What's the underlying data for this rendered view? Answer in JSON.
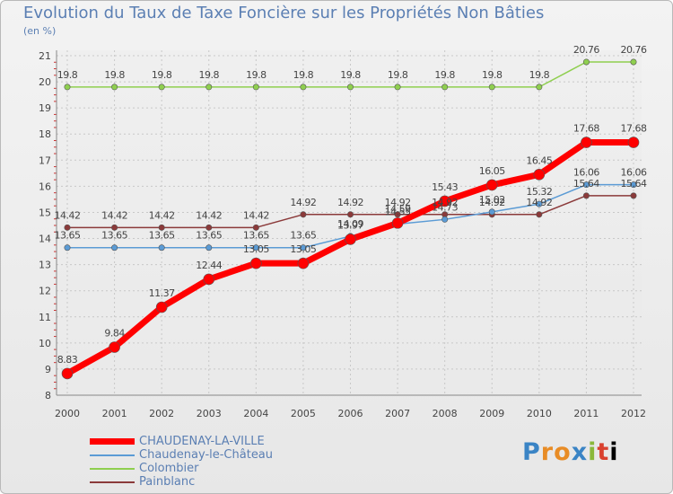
{
  "chart_data": {
    "type": "line",
    "title": "Evolution du Taux de Taxe Foncière sur les Propriétés Non Bâties",
    "ylabel": "(en %)",
    "xlabel": "",
    "ylim": [
      8,
      21
    ],
    "yticks": [
      "8",
      "9",
      "10",
      "11",
      "12",
      "13",
      "14",
      "15",
      "16",
      "17",
      "18",
      "19",
      "20",
      "21"
    ],
    "x": [
      "2000",
      "2001",
      "2002",
      "2003",
      "2004",
      "2005",
      "2006",
      "2007",
      "2008",
      "2009",
      "2010",
      "2011",
      "2012"
    ],
    "series": [
      {
        "name": "CHAUDENAY-LA-VILLE",
        "color": "#ff0000",
        "values": [
          8.83,
          9.84,
          11.37,
          12.44,
          13.05,
          13.05,
          13.97,
          14.59,
          15.43,
          16.05,
          16.45,
          17.68,
          17.68
        ],
        "labels": [
          "8.83",
          "9.84",
          "11.37",
          "12.44",
          "13.05",
          "13.05",
          "13.97",
          "14.59",
          "15.43",
          "16.05",
          "16.45",
          "17.68",
          "17.68"
        ]
      },
      {
        "name": "Chaudenay-le-Château",
        "color": "#5b9bd5",
        "values": [
          13.65,
          13.65,
          13.65,
          13.65,
          13.65,
          13.65,
          14.09,
          14.55,
          14.73,
          15.02,
          15.32,
          16.06,
          16.06
        ],
        "labels": [
          "13.65",
          "13.65",
          "13.65",
          "13.65",
          "13.65",
          "13.65",
          "14.09",
          "14.55",
          "14.73",
          "15.02",
          "15.32",
          "16.06",
          "16.06"
        ]
      },
      {
        "name": "Colombier",
        "color": "#8fcf4f",
        "values": [
          19.8,
          19.8,
          19.8,
          19.8,
          19.8,
          19.8,
          19.8,
          19.8,
          19.8,
          19.8,
          19.8,
          20.76,
          20.76
        ],
        "labels": [
          "19.8",
          "19.8",
          "19.8",
          "19.8",
          "19.8",
          "19.8",
          "19.8",
          "19.8",
          "19.8",
          "19.8",
          "19.8",
          "20.76",
          "20.76"
        ]
      },
      {
        "name": "Painblanc",
        "color": "#8b3a3a",
        "values": [
          14.42,
          14.42,
          14.42,
          14.42,
          14.42,
          14.92,
          14.92,
          14.92,
          14.92,
          14.92,
          14.92,
          15.64,
          15.64
        ],
        "labels": [
          "14.42",
          "14.42",
          "14.42",
          "14.42",
          "14.42",
          "14.92",
          "14.92",
          "14.92",
          "14.92",
          "14.92",
          "14.92",
          "15.64",
          "15.64"
        ]
      }
    ]
  },
  "legend": {
    "items": [
      "CHAUDENAY-LA-VILLE",
      "Chaudenay-le-Château",
      "Colombier",
      "Painblanc"
    ]
  },
  "logo": {
    "letters": [
      "P",
      "r",
      "o",
      "x",
      "i",
      "t",
      "i"
    ]
  }
}
